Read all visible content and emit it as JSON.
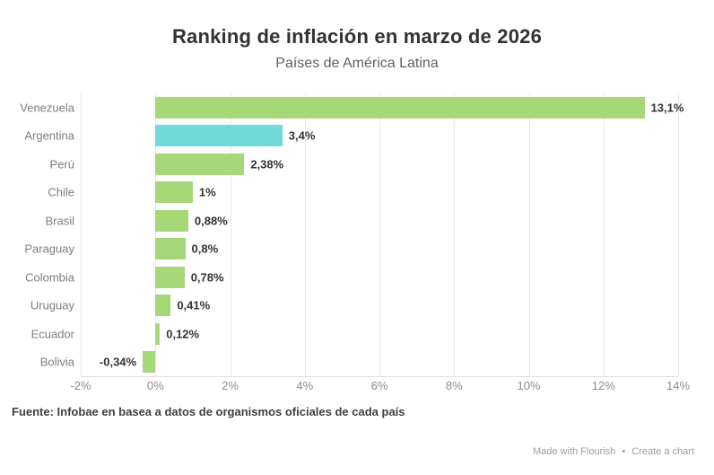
{
  "header": {
    "title": "Ranking de inflación en marzo de 2026",
    "subtitle": "Países de América Latina"
  },
  "footer": {
    "source": "Fuente: Infobae en basea a datos de organismos oficiales de cada país"
  },
  "credit": {
    "made_with": "Made with Flourish",
    "separator": "•",
    "create_chart": "Create a chart"
  },
  "colors": {
    "bar_default": "#a7d877",
    "bar_highlight": "#6fdbd8",
    "grid": "#e8e8e8",
    "axis_line": "#dedede",
    "category_text": "#7d7d7d",
    "value_text": "#333333",
    "tick_text": "#8c8c8c",
    "title_text": "#333333",
    "subtitle_text": "#5f5f5f",
    "footer_text": "#3f3f3f",
    "credit_text": "#9e9e9e"
  },
  "chart_data": {
    "type": "bar",
    "orientation": "horizontal",
    "title": "Ranking de inflación en marzo de 2026",
    "subtitle": "Países de América Latina",
    "categories": [
      "Venezuela",
      "Argentina",
      "Perú",
      "Chile",
      "Brasil",
      "Paraguay",
      "Colombia",
      "Uruguay",
      "Ecuador",
      "Bolivia"
    ],
    "values": [
      13.1,
      3.4,
      2.38,
      1,
      0.88,
      0.8,
      0.78,
      0.41,
      0.12,
      -0.34
    ],
    "value_labels": [
      "13,1%",
      "3,4%",
      "2,38%",
      "1%",
      "0,88%",
      "0,8%",
      "0,78%",
      "0,41%",
      "0,12%",
      "-0,34%"
    ],
    "highlight_index": 1,
    "xlabel": "",
    "ylabel": "",
    "xlim": [
      -2,
      14
    ],
    "x_ticks": [
      -2,
      0,
      2,
      4,
      6,
      8,
      10,
      12,
      14
    ],
    "x_tick_labels": [
      "-2%",
      "0%",
      "2%",
      "4%",
      "6%",
      "8%",
      "10%",
      "12%",
      "14%"
    ],
    "grid": true,
    "legend": false
  }
}
